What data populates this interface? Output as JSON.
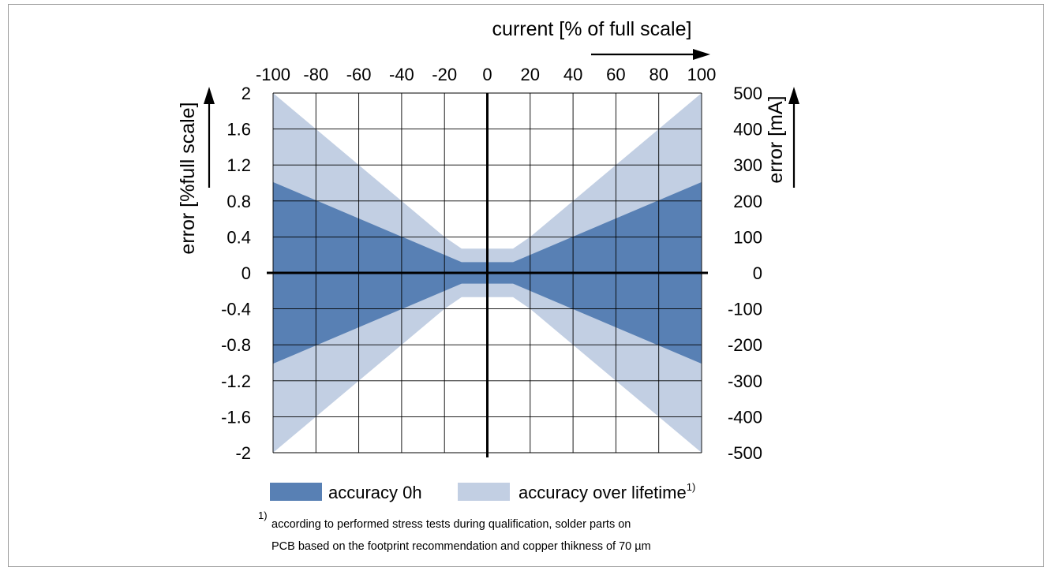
{
  "chart_data": {
    "type": "area",
    "x_axis": {
      "label": "current [% of full scale]",
      "ticks": [
        -100,
        -80,
        -60,
        -40,
        -20,
        0,
        20,
        40,
        60,
        80,
        100
      ],
      "range": [
        -100,
        100
      ],
      "position": "top"
    },
    "y_axis_left": {
      "label": "error [%full scale]",
      "ticks": [
        2,
        1.6,
        1.2,
        0.8,
        0.4,
        0,
        -0.4,
        -0.8,
        -1.2,
        -1.6,
        -2
      ],
      "range": [
        -2,
        2
      ]
    },
    "y_axis_right": {
      "label": "error [mA]",
      "ticks": [
        500,
        400,
        300,
        200,
        100,
        0,
        -100,
        -200,
        -300,
        -400,
        -500
      ],
      "range": [
        -500,
        500
      ]
    },
    "grid": true,
    "series": [
      {
        "name": "accuracy over lifetime",
        "color": "#c2cfe3",
        "x": [
          -100,
          -20,
          -12,
          12,
          20,
          100
        ],
        "upper": [
          2,
          0.4,
          0.27,
          0.27,
          0.4,
          2
        ],
        "lower": [
          -2,
          -0.4,
          -0.27,
          -0.27,
          -0.4,
          -2
        ]
      },
      {
        "name": "accuracy 0h",
        "color": "#5880b4",
        "x": [
          -100,
          -12,
          12,
          100
        ],
        "upper": [
          1.01,
          0.12,
          0.12,
          1.01
        ],
        "lower": [
          -1.01,
          -0.12,
          -0.12,
          -1.01
        ]
      }
    ],
    "legend": {
      "placement": "bottom",
      "items": [
        {
          "label": "accuracy 0h",
          "color": "#5880b4",
          "sup": ""
        },
        {
          "label": "accuracy over lifetime",
          "color": "#c2cfe3",
          "sup": "1)"
        }
      ]
    },
    "footnote": {
      "marker": "1)",
      "line1": "according to performed stress tests during qualification, solder parts on",
      "line2": "PCB based on the footprint recommendation and copper thikness of 70 µm"
    }
  }
}
